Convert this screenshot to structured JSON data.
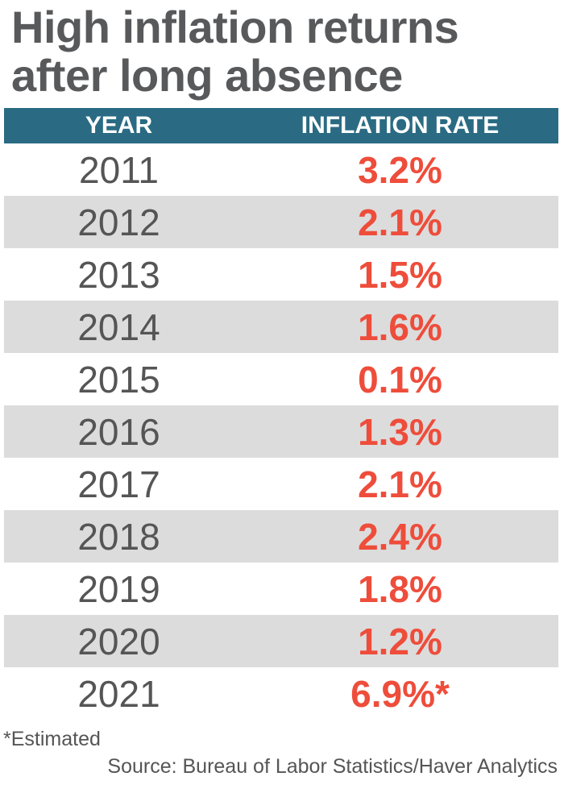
{
  "title_line1": "High inflation returns",
  "title_line2": "after long absence",
  "chart_data": {
    "type": "table",
    "columns": [
      "YEAR",
      "INFLATION RATE"
    ],
    "rows": [
      {
        "year": "2011",
        "rate": "3.2%"
      },
      {
        "year": "2012",
        "rate": "2.1%"
      },
      {
        "year": "2013",
        "rate": "1.5%"
      },
      {
        "year": "2014",
        "rate": "1.6%"
      },
      {
        "year": "2015",
        "rate": "0.1%"
      },
      {
        "year": "2016",
        "rate": "1.3%"
      },
      {
        "year": "2017",
        "rate": "2.1%"
      },
      {
        "year": "2018",
        "rate": "2.4%"
      },
      {
        "year": "2019",
        "rate": "1.8%"
      },
      {
        "year": "2020",
        "rate": "1.2%"
      },
      {
        "year": "2021",
        "rate": "6.9%*"
      }
    ]
  },
  "footnote": "*Estimated",
  "source": "Source: Bureau of Labor Statistics/Haver Analytics",
  "colors": {
    "title": "#58595b",
    "header_bg": "#2a6b83",
    "header_text": "#ffffff",
    "rate_text": "#ee4d3b",
    "stripe": "#dcdcdc"
  }
}
